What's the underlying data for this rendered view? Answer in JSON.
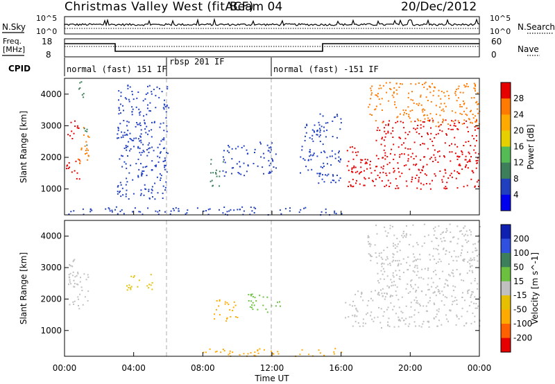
{
  "header": {
    "title": "Christmas Valley West (fitACF)",
    "beam": "Beam 04",
    "date": "20/Dec/2012"
  },
  "top_panels": {
    "noise": {
      "left_label": "N.Sky",
      "right_label": "N.Search",
      "left_ticks": [
        "10^5",
        "10^0"
      ],
      "right_ticks": [
        "10^5",
        "10^0"
      ]
    },
    "freq": {
      "left_label_line1": "Freq.",
      "left_label_line2": "[MHz]",
      "right_label": "Nave",
      "left_ticks": [
        "18",
        "8"
      ],
      "right_ticks": [
        "60",
        "0"
      ]
    },
    "cpid": {
      "label": "CPID",
      "segments": [
        {
          "start_hr": 0,
          "end_hr": 6,
          "text": "normal (fast) 151 IF"
        },
        {
          "start_hr": 6,
          "end_hr": 12,
          "text": "rbsp 201 IF"
        },
        {
          "start_hr": 12,
          "end_hr": 24,
          "text": "normal (fast) -151 IF"
        }
      ]
    }
  },
  "chart_data": [
    {
      "type": "heatmap",
      "panel": "power",
      "ylabel": "Slant Range [km]",
      "ylim": [
        180,
        4500
      ],
      "yticks": [
        "1000",
        "2000",
        "3000",
        "4000"
      ],
      "colorbar_label": "Power [dB]",
      "colorbar_ticks": [
        "28",
        "24",
        "20",
        "16",
        "12",
        "8",
        "4"
      ],
      "colorbar_colors": [
        "#e60000",
        "#ff7a00",
        "#ffaa00",
        "#e6d000",
        "#55bb55",
        "#3c7f5a",
        "#2040c0",
        "#0000ee"
      ],
      "xlim_hours": [
        0,
        24
      ],
      "scatter_regions": [
        {
          "t": [
            0.0,
            0.8
          ],
          "r": [
            2500,
            3200
          ],
          "c": "#e60000"
        },
        {
          "t": [
            0.0,
            0.9
          ],
          "r": [
            1300,
            2000
          ],
          "c": "#e60000"
        },
        {
          "t": [
            0.7,
            1.4
          ],
          "r": [
            1800,
            3000
          ],
          "c": "#ff7a00"
        },
        {
          "t": [
            0.9,
            1.3
          ],
          "r": [
            2400,
            3000
          ],
          "c": "#3c7f5a"
        },
        {
          "t": [
            0.8,
            1.3
          ],
          "r": [
            3900,
            4500
          ],
          "c": "#3c7f5a"
        },
        {
          "t": [
            3.5,
            5.0
          ],
          "r": [
            2200,
            2800
          ],
          "c": "#2040c0"
        },
        {
          "t": [
            3.0,
            6.0
          ],
          "r": [
            700,
            4400
          ],
          "c": "#2040c0"
        },
        {
          "t": [
            8.4,
            9.2
          ],
          "r": [
            1100,
            2000
          ],
          "c": "#3c7f5a"
        },
        {
          "t": [
            9.0,
            10.6
          ],
          "r": [
            1400,
            2400
          ],
          "c": "#2040c0"
        },
        {
          "t": [
            10.8,
            12.2
          ],
          "r": [
            1500,
            2600
          ],
          "c": "#2040c0"
        },
        {
          "t": [
            13.6,
            14.6
          ],
          "r": [
            1500,
            3200
          ],
          "c": "#2040c0"
        },
        {
          "t": [
            14.5,
            16.0
          ],
          "r": [
            1200,
            3400
          ],
          "c": "#2040c0"
        },
        {
          "t": [
            16.3,
            17.0
          ],
          "r": [
            1100,
            2400
          ],
          "c": "#e60000"
        },
        {
          "t": [
            16.5,
            24.0
          ],
          "r": [
            1000,
            2100
          ],
          "c": "#e60000"
        },
        {
          "t": [
            18.0,
            24.0
          ],
          "r": [
            2000,
            3200
          ],
          "c": "#e60000"
        },
        {
          "t": [
            17.5,
            24.0
          ],
          "r": [
            3000,
            4400
          ],
          "c": "#ff7a00"
        },
        {
          "t": [
            0.0,
            16.0
          ],
          "r": [
            200,
            450
          ],
          "c": "#2040c0"
        }
      ]
    },
    {
      "type": "heatmap",
      "panel": "velocity",
      "ylabel": "Slant Range [km]",
      "ylim": [
        180,
        4500
      ],
      "yticks": [
        "1000",
        "2000",
        "3000",
        "4000"
      ],
      "colorbar_label": "Velocity [m s^-1]",
      "colorbar_ticks": [
        "200",
        "100",
        "50",
        "15",
        "-15",
        "-50",
        "-100",
        "-200"
      ],
      "colorbar_colors": [
        "#1020b0",
        "#3050e0",
        "#3c7f5a",
        "#6cc040",
        "#c0c0c0",
        "#e6c000",
        "#ffaa00",
        "#ff6000",
        "#e60000"
      ],
      "xlim_hours": [
        0,
        24
      ],
      "xlabel": "Time UT",
      "xticks": [
        "00:00",
        "04:00",
        "08:00",
        "12:00",
        "16:00",
        "20:00",
        "00:00"
      ],
      "scatter_regions": [
        {
          "t": [
            0.0,
            0.9
          ],
          "r": [
            2400,
            3300
          ],
          "c": "#c0c0c0"
        },
        {
          "t": [
            0.2,
            1.4
          ],
          "r": [
            1700,
            2900
          ],
          "c": "#c0c0c0"
        },
        {
          "t": [
            3.5,
            5.2
          ],
          "r": [
            2300,
            2800
          ],
          "c": "#e6c000"
        },
        {
          "t": [
            8.5,
            10.0
          ],
          "r": [
            1300,
            2000
          ],
          "c": "#ffaa00"
        },
        {
          "t": [
            10.5,
            12.5
          ],
          "r": [
            1600,
            2200
          ],
          "c": "#6cc040"
        },
        {
          "t": [
            16.2,
            24.0
          ],
          "r": [
            1100,
            2300
          ],
          "c": "#c0c0c0"
        },
        {
          "t": [
            18.0,
            24.0
          ],
          "r": [
            2200,
            3300
          ],
          "c": "#c0c0c0"
        },
        {
          "t": [
            17.5,
            24.0
          ],
          "r": [
            3200,
            4400
          ],
          "c": "#c0c0c0"
        },
        {
          "t": [
            8.0,
            16.0
          ],
          "r": [
            200,
            450
          ],
          "c": "#ffaa00"
        }
      ]
    }
  ]
}
